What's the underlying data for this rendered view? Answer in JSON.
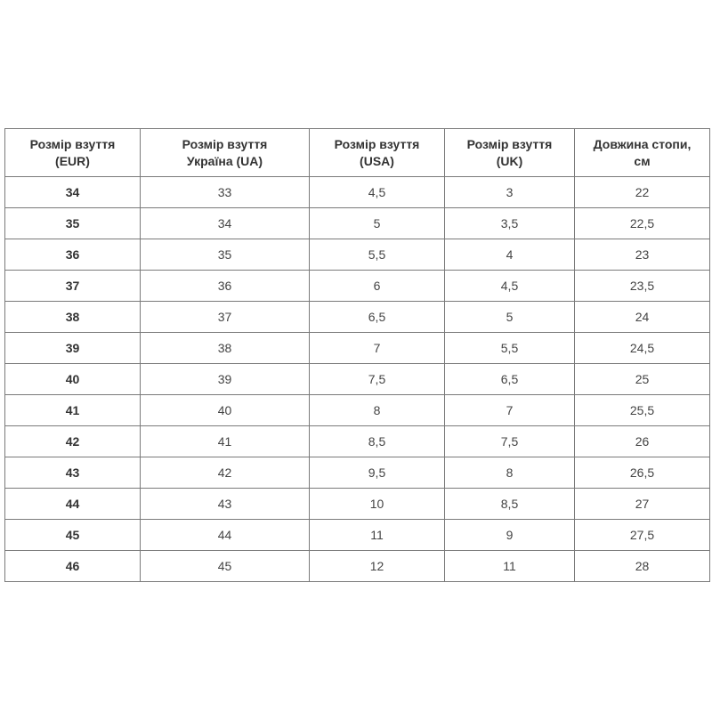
{
  "table": {
    "headers": [
      [
        "Розмір взуття",
        "(EUR)"
      ],
      [
        "Розмір взуття",
        "Україна (UA)"
      ],
      [
        "Розмір взуття",
        "(USA)"
      ],
      [
        "Розмір взуття",
        "(UK)"
      ],
      [
        "Довжина стопи,",
        "см"
      ]
    ],
    "rows": [
      [
        "34",
        "33",
        "4,5",
        "3",
        "22"
      ],
      [
        "35",
        "34",
        "5",
        "3,5",
        "22,5"
      ],
      [
        "36",
        "35",
        "5,5",
        "4",
        "23"
      ],
      [
        "37",
        "36",
        "6",
        "4,5",
        "23,5"
      ],
      [
        "38",
        "37",
        "6,5",
        "5",
        "24"
      ],
      [
        "39",
        "38",
        "7",
        "5,5",
        "24,5"
      ],
      [
        "40",
        "39",
        "7,5",
        "6,5",
        "25"
      ],
      [
        "41",
        "40",
        "8",
        "7",
        "25,5"
      ],
      [
        "42",
        "41",
        "8,5",
        "7,5",
        "26"
      ],
      [
        "43",
        "42",
        "9,5",
        "8",
        "26,5"
      ],
      [
        "44",
        "43",
        "10",
        "8,5",
        "27"
      ],
      [
        "45",
        "44",
        "11",
        "9",
        "27,5"
      ],
      [
        "46",
        "45",
        "12",
        "11",
        "28"
      ]
    ]
  }
}
